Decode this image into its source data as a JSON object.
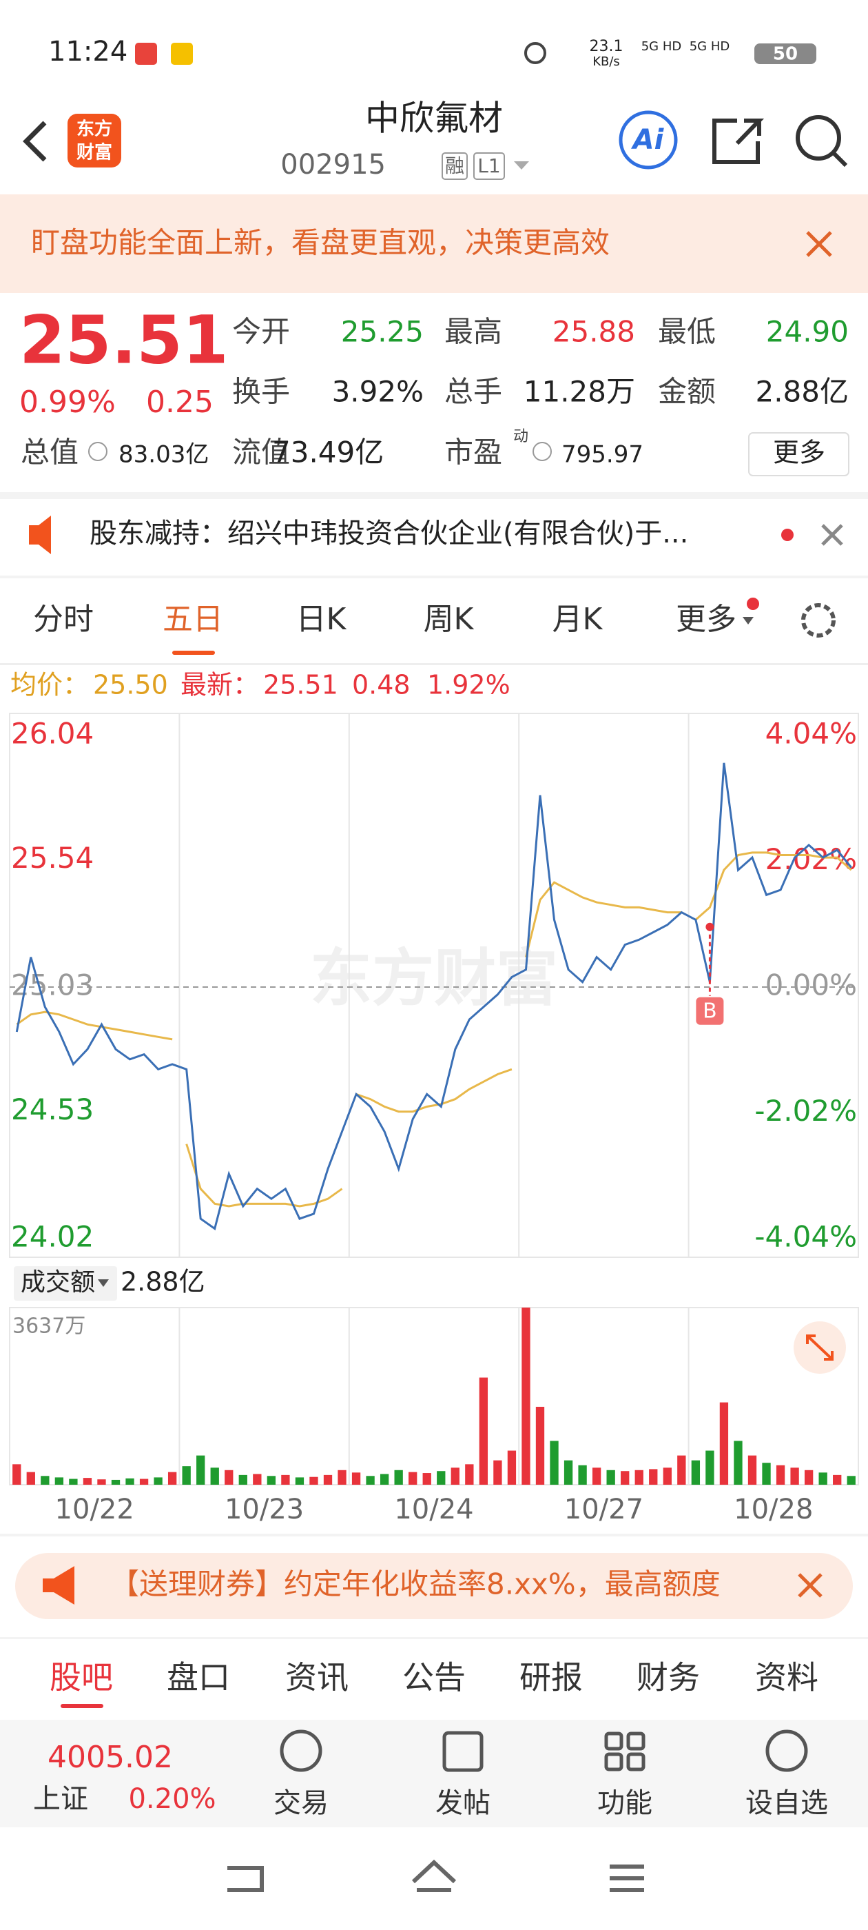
{
  "status_bar": {
    "time": "11:24",
    "speed": "23.1",
    "speed_unit": "KB/s",
    "net1": "5G HD",
    "net2": "5G HD",
    "battery": "50"
  },
  "header": {
    "logo": [
      "东方",
      "财富"
    ],
    "title": "中欣氟材",
    "code": "002915",
    "badge1": "融",
    "badge2": "L1",
    "ai": "Ai"
  },
  "banner": {
    "text": "盯盘功能全面上新，看盘更直观，决策更高效"
  },
  "quote": {
    "price": "25.51",
    "pct": "0.99%",
    "change": "0.25",
    "open_label": "今开",
    "open": "25.25",
    "high_label": "最高",
    "high": "25.88",
    "low_label": "最低",
    "low": "24.90",
    "turnover_label": "换手",
    "turnover": "3.92%",
    "volume_label": "总手",
    "volume": "11.28万",
    "amount_label": "金额",
    "amount": "2.88亿",
    "cap_label": "总值",
    "cap": "83.03亿",
    "float_label": "流值",
    "float": "73.49亿",
    "pe_label": "市盈",
    "pe_sup": "动",
    "pe": "795.97",
    "more": "更多"
  },
  "notice": {
    "text": "股东减持：绍兴中玮投资合伙企业(有限合伙)于..."
  },
  "tabs": [
    "分时",
    "五日",
    "日K",
    "周K",
    "月K",
    "更多"
  ],
  "chart_data": {
    "type": "line",
    "legend": {
      "avg_label": "均价：",
      "avg": "25.50",
      "last_label": "最新：",
      "last": "25.51",
      "change": "0.48",
      "pct": "1.92%"
    },
    "watermark": "东方财富",
    "ylim": [
      24.02,
      26.04
    ],
    "yticks": [
      26.04,
      25.54,
      25.03,
      24.53,
      24.02
    ],
    "y2lim": [
      -4.04,
      4.04
    ],
    "y2ticks": [
      {
        "value": 4.04,
        "label": "4.04%"
      },
      {
        "value": 2.02,
        "label": "2.02%"
      },
      {
        "value": 0,
        "label": "0.00%"
      },
      {
        "value": -2.02,
        "label": "-2.02%"
      },
      {
        "value": -4.04,
        "label": "-4.04%"
      }
    ],
    "marker": "B",
    "days": [
      {
        "label": "10/22",
        "price": [
          24.85,
          25.15,
          24.95,
          24.85,
          24.72,
          24.78,
          24.88,
          24.78,
          24.74,
          24.76,
          24.7,
          24.72
        ],
        "avg": [
          24.88,
          24.92,
          24.93,
          24.92,
          24.9,
          24.88,
          24.87,
          24.86,
          24.85,
          24.84,
          24.83,
          24.82
        ],
        "volume": [
          420,
          260,
          180,
          150,
          120,
          140,
          110,
          100,
          130,
          120,
          150,
          260
        ]
      },
      {
        "label": "10/23",
        "price": [
          24.7,
          24.1,
          24.06,
          24.28,
          24.15,
          24.22,
          24.18,
          24.22,
          24.1,
          24.12,
          24.3,
          24.45
        ],
        "avg": [
          24.4,
          24.22,
          24.16,
          24.15,
          24.16,
          24.16,
          24.16,
          24.16,
          24.15,
          24.16,
          24.18,
          24.22
        ],
        "volume": [
          380,
          600,
          350,
          300,
          200,
          220,
          180,
          200,
          150,
          160,
          200,
          300
        ]
      },
      {
        "label": "10/24",
        "price": [
          24.6,
          24.55,
          24.45,
          24.3,
          24.5,
          24.6,
          24.55,
          24.78,
          24.9,
          24.95,
          25.0,
          25.07
        ],
        "avg": [
          24.6,
          24.58,
          24.55,
          24.53,
          24.53,
          24.55,
          24.56,
          24.58,
          24.62,
          24.65,
          24.68,
          24.7
        ],
        "volume": [
          250,
          180,
          220,
          300,
          260,
          240,
          280,
          350,
          420,
          2200,
          500,
          700
        ]
      },
      {
        "label": "10/27",
        "price": [
          25.1,
          25.8,
          25.3,
          25.1,
          25.05,
          25.15,
          25.1,
          25.2,
          25.22,
          25.25,
          25.28,
          25.33
        ],
        "avg": [
          25.15,
          25.38,
          25.45,
          25.42,
          25.39,
          25.37,
          25.36,
          25.35,
          25.35,
          25.34,
          25.33,
          25.33
        ],
        "volume": [
          3637,
          1600,
          900,
          500,
          400,
          350,
          300,
          280,
          300,
          320,
          350,
          600
        ]
      },
      {
        "label": "10/28",
        "price": [
          25.3,
          25.05,
          25.93,
          25.5,
          25.55,
          25.4,
          25.42,
          25.55,
          25.6,
          25.55,
          25.58,
          25.51
        ],
        "avg": [
          25.3,
          25.35,
          25.5,
          25.56,
          25.57,
          25.57,
          25.56,
          25.56,
          25.56,
          25.55,
          25.55,
          25.5
        ],
        "volume": [
          500,
          700,
          1690,
          900,
          600,
          450,
          400,
          350,
          300,
          250,
          200,
          180
        ]
      }
    ],
    "volume_panel": {
      "title": "成交额",
      "total": "2.88亿",
      "ylim": [
        0,
        3637
      ],
      "top_tick": {
        "value": 3637,
        "label": "3637万"
      }
    }
  },
  "ad": {
    "text": "【送理财券】约定年化收益率8.xx%，最高额度"
  },
  "bottom_tabs": [
    "股吧",
    "盘口",
    "资讯",
    "公告",
    "研报",
    "财务",
    "资料"
  ],
  "toolbar": {
    "index_value": "4005.02",
    "index_name": "上证",
    "index_pct": "0.20%",
    "items": [
      "交易",
      "发帖",
      "功能",
      "设自选"
    ]
  }
}
